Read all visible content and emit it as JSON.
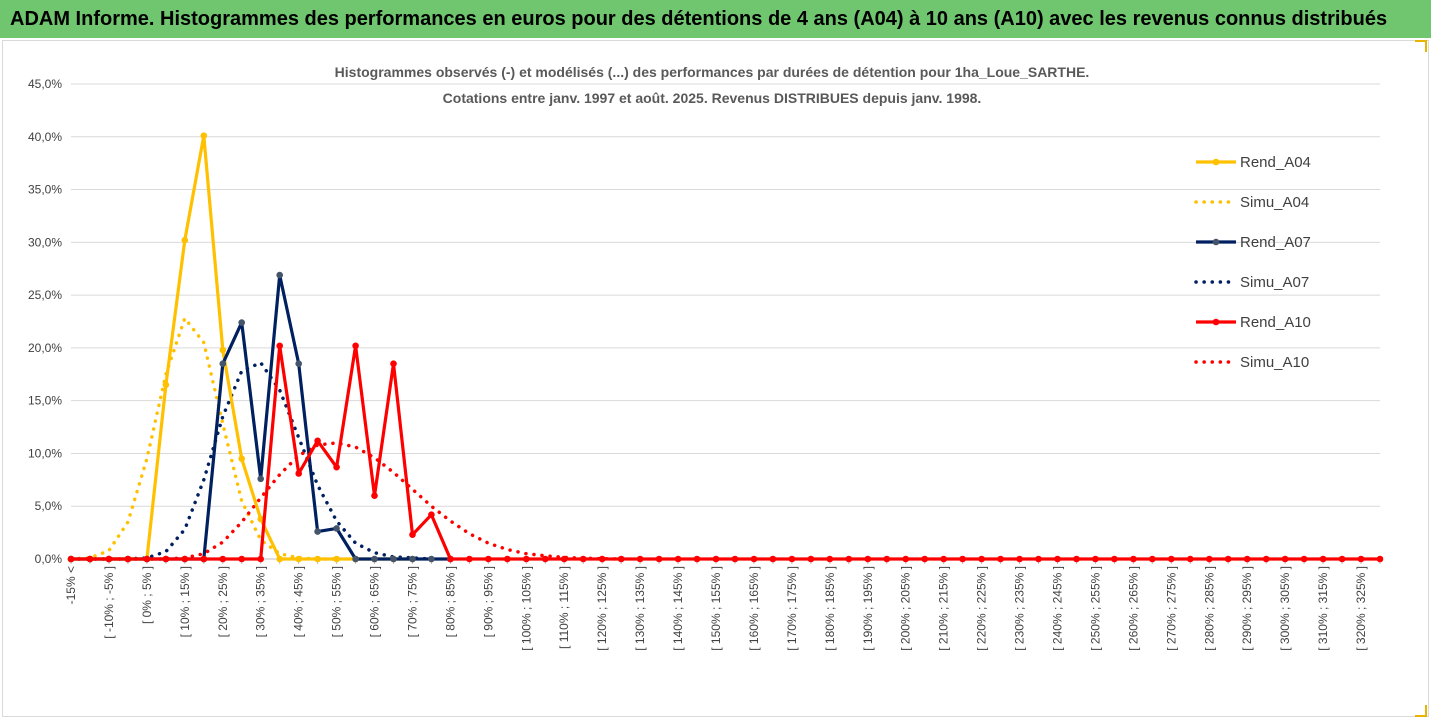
{
  "banner": {
    "title": "ADAM Informe. Histogrammes des performances en euros pour des détentions de 4 ans (A04) à 10 ans (A10) avec les revenus connus distribués"
  },
  "chart_data": {
    "type": "line",
    "title_line1": "Histogrammes observés (-) et modélisés (...) des performances par durées de détention pour 1ha_Loue_SARTHE.",
    "title_line2": "Cotations entre janv. 1997 et août. 2025. Revenus DISTRIBUES depuis janv. 1998.",
    "ylim": [
      0,
      45
    ],
    "yticks": [
      "0,0%",
      "5,0%",
      "10,0%",
      "15,0%",
      "20,0%",
      "25,0%",
      "30,0%",
      "35,0%",
      "40,0%",
      "45,0%"
    ],
    "x_labels": [
      "-15% <",
      "[ -10% ; -5% ]",
      "[ 0% ; 5% ]",
      "[ 10% ; 15% ]",
      "[ 20% ; 25% ]",
      "[ 30% ; 35% ]",
      "[ 40% ; 45% ]",
      "[ 50% ; 55% ]",
      "[ 60% ; 65% ]",
      "[ 70% ; 75% ]",
      "[ 80% ; 85% ]",
      "[ 90% ; 95% ]",
      "[ 100% ; 105% ]",
      "[ 110% ; 115% ]",
      "[ 120% ; 125% ]",
      "[ 130% ; 135% ]",
      "[ 140% ; 145% ]",
      "[ 150% ; 155% ]",
      "[ 160% ; 165% ]",
      "[ 170% ; 175% ]",
      "[ 180% ; 185% ]",
      "[ 190% ; 195% ]",
      "[ 200% ; 205% ]",
      "[ 210% ; 215% ]",
      "[ 220% ; 225% ]",
      "[ 230% ; 235% ]",
      "[ 240% ; 245% ]",
      "[ 250% ; 255% ]",
      "[ 260% ; 265% ]",
      "[ 270% ; 275% ]",
      "[ 280% ; 285% ]",
      "[ 290% ; 295% ]",
      "[ 300% ; 305% ]",
      "[ 310% ; 315% ]",
      "[ 320% ; 325% ]"
    ],
    "n_bins": 70,
    "grid": true,
    "legend_position": "right",
    "series": [
      {
        "name": "Rend_A04",
        "style": "solid",
        "color": "#ffc000",
        "points": [
          [
            0,
            0
          ],
          [
            1,
            0
          ],
          [
            2,
            0
          ],
          [
            3,
            0
          ],
          [
            4,
            0
          ],
          [
            5,
            16.5
          ],
          [
            6,
            30.2
          ],
          [
            7,
            40.1
          ],
          [
            8,
            19.8
          ],
          [
            9,
            9.5
          ],
          [
            10,
            3.8
          ],
          [
            11,
            0
          ],
          [
            12,
            0
          ],
          [
            13,
            0
          ],
          [
            14,
            0
          ],
          [
            15,
            0
          ],
          [
            16,
            0
          ],
          [
            17,
            0
          ],
          [
            18,
            0
          ]
        ]
      },
      {
        "name": "Simu_A04",
        "style": "dotted",
        "color": "#ffc000",
        "points": [
          [
            0,
            0
          ],
          [
            1,
            0.1
          ],
          [
            2,
            0.8
          ],
          [
            3,
            3.5
          ],
          [
            4,
            9.5
          ],
          [
            5,
            17.5
          ],
          [
            6,
            22.8
          ],
          [
            7,
            20.5
          ],
          [
            8,
            12.8
          ],
          [
            9,
            5.5
          ],
          [
            10,
            1.8
          ],
          [
            11,
            0.5
          ],
          [
            12,
            0.1
          ],
          [
            13,
            0
          ],
          [
            14,
            0
          ]
        ]
      },
      {
        "name": "Rend_A07",
        "style": "solid",
        "color": "#002060",
        "points": [
          [
            0,
            0
          ],
          [
            1,
            0
          ],
          [
            2,
            0
          ],
          [
            3,
            0
          ],
          [
            4,
            0
          ],
          [
            5,
            0
          ],
          [
            6,
            0
          ],
          [
            7,
            0
          ],
          [
            8,
            18.5
          ],
          [
            9,
            22.4
          ],
          [
            10,
            7.6
          ],
          [
            11,
            26.9
          ],
          [
            12,
            18.5
          ],
          [
            13,
            2.6
          ],
          [
            14,
            2.9
          ],
          [
            15,
            0
          ],
          [
            16,
            0
          ],
          [
            17,
            0
          ],
          [
            18,
            0
          ],
          [
            19,
            0
          ],
          [
            20,
            0
          ]
        ]
      },
      {
        "name": "Simu_A07",
        "style": "dotted",
        "color": "#002060",
        "points": [
          [
            0,
            0
          ],
          [
            1,
            0
          ],
          [
            2,
            0
          ],
          [
            3,
            0
          ],
          [
            4,
            0.1
          ],
          [
            5,
            0.7
          ],
          [
            6,
            2.8
          ],
          [
            7,
            7.5
          ],
          [
            8,
            13.5
          ],
          [
            9,
            17.8
          ],
          [
            10,
            18.6
          ],
          [
            11,
            16.0
          ],
          [
            12,
            11.5
          ],
          [
            13,
            7.0
          ],
          [
            14,
            3.6
          ],
          [
            15,
            1.5
          ],
          [
            16,
            0.6
          ],
          [
            17,
            0.2
          ],
          [
            18,
            0.1
          ],
          [
            19,
            0
          ]
        ]
      },
      {
        "name": "Rend_A10",
        "style": "solid",
        "color": "#ff0000",
        "points": [
          [
            0,
            0
          ],
          [
            1,
            0
          ],
          [
            2,
            0
          ],
          [
            3,
            0
          ],
          [
            4,
            0
          ],
          [
            5,
            0
          ],
          [
            6,
            0
          ],
          [
            7,
            0
          ],
          [
            8,
            0
          ],
          [
            9,
            0
          ],
          [
            10,
            0
          ],
          [
            11,
            20.2
          ],
          [
            12,
            8.1
          ],
          [
            13,
            11.2
          ],
          [
            14,
            8.7
          ],
          [
            15,
            20.2
          ],
          [
            16,
            6.0
          ],
          [
            17,
            18.5
          ],
          [
            18,
            2.3
          ],
          [
            19,
            4.2
          ],
          [
            20,
            0
          ],
          [
            21,
            0
          ],
          [
            22,
            0
          ],
          [
            23,
            0
          ],
          [
            24,
            0
          ],
          [
            25,
            0
          ],
          [
            26,
            0
          ],
          [
            27,
            0
          ],
          [
            28,
            0
          ],
          [
            29,
            0
          ],
          [
            30,
            0
          ],
          [
            31,
            0
          ],
          [
            32,
            0
          ],
          [
            33,
            0
          ],
          [
            34,
            0
          ],
          [
            35,
            0
          ],
          [
            36,
            0
          ],
          [
            37,
            0
          ],
          [
            38,
            0
          ],
          [
            39,
            0
          ],
          [
            40,
            0
          ],
          [
            41,
            0
          ],
          [
            42,
            0
          ],
          [
            43,
            0
          ],
          [
            44,
            0
          ],
          [
            45,
            0
          ],
          [
            46,
            0
          ],
          [
            47,
            0
          ],
          [
            48,
            0
          ],
          [
            49,
            0
          ],
          [
            50,
            0
          ],
          [
            51,
            0
          ],
          [
            52,
            0
          ],
          [
            53,
            0
          ],
          [
            54,
            0
          ],
          [
            55,
            0
          ],
          [
            56,
            0
          ],
          [
            57,
            0
          ],
          [
            58,
            0
          ],
          [
            59,
            0
          ],
          [
            60,
            0
          ],
          [
            61,
            0
          ],
          [
            62,
            0
          ],
          [
            63,
            0
          ],
          [
            64,
            0
          ],
          [
            65,
            0
          ],
          [
            66,
            0
          ],
          [
            67,
            0
          ],
          [
            68,
            0
          ],
          [
            69,
            0
          ]
        ]
      },
      {
        "name": "Simu_A10",
        "style": "dotted",
        "color": "#ff0000",
        "points": [
          [
            0,
            0
          ],
          [
            1,
            0
          ],
          [
            2,
            0
          ],
          [
            3,
            0
          ],
          [
            4,
            0
          ],
          [
            5,
            0
          ],
          [
            6,
            0.1
          ],
          [
            7,
            0.5
          ],
          [
            8,
            1.6
          ],
          [
            9,
            3.5
          ],
          [
            10,
            5.8
          ],
          [
            11,
            8.0
          ],
          [
            12,
            9.8
          ],
          [
            13,
            10.8
          ],
          [
            14,
            11.0
          ],
          [
            15,
            10.6
          ],
          [
            16,
            9.6
          ],
          [
            17,
            8.2
          ],
          [
            18,
            6.6
          ],
          [
            19,
            5.0
          ],
          [
            20,
            3.6
          ],
          [
            21,
            2.4
          ],
          [
            22,
            1.5
          ],
          [
            23,
            0.9
          ],
          [
            24,
            0.5
          ],
          [
            25,
            0.3
          ],
          [
            26,
            0.15
          ],
          [
            27,
            0.08
          ],
          [
            28,
            0.03
          ],
          [
            29,
            0
          ]
        ]
      }
    ]
  }
}
